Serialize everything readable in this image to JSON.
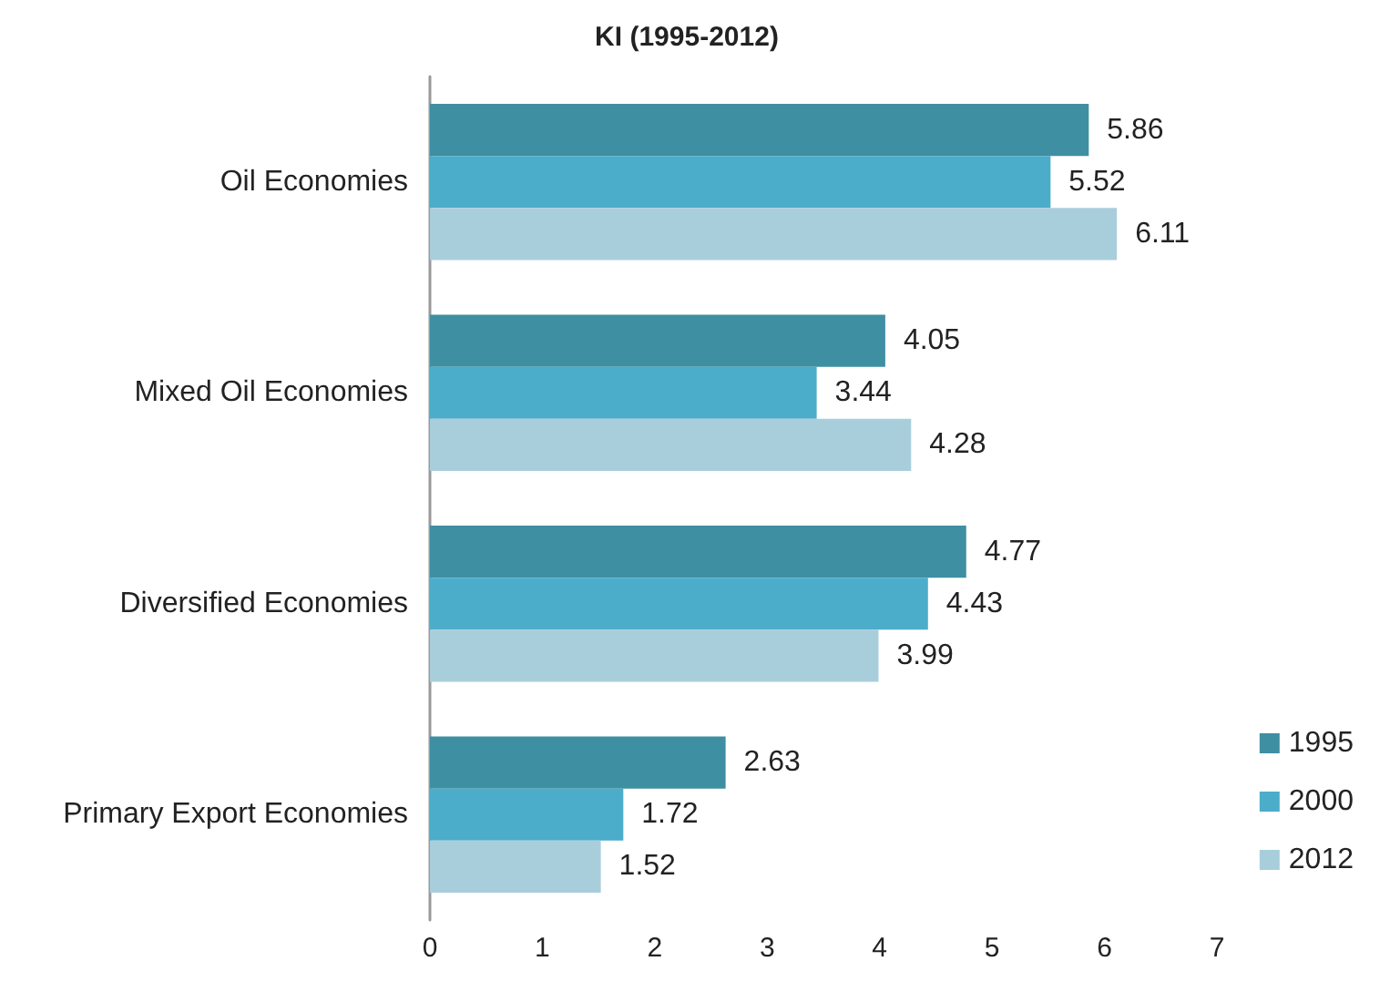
{
  "chart_data": {
    "type": "bar",
    "orientation": "horizontal",
    "title": "KI (1995-2012)",
    "categories": [
      "Oil Economies",
      "Mixed Oil Economies",
      "Diversified Economies",
      "Primary Export Economies"
    ],
    "series": [
      {
        "name": "1995",
        "color": "#3e8fa1",
        "values": [
          5.86,
          4.05,
          4.77,
          2.63
        ]
      },
      {
        "name": "2000",
        "color": "#4badc9",
        "values": [
          5.52,
          3.44,
          4.43,
          1.72
        ]
      },
      {
        "name": "2012",
        "color": "#a9cedb",
        "values": [
          6.11,
          4.28,
          3.99,
          1.52
        ]
      }
    ],
    "xlim": [
      0,
      7
    ],
    "xticks": [
      0,
      1,
      2,
      3,
      4,
      5,
      6,
      7
    ],
    "data_labels": true,
    "grid": false,
    "legend": "bottom right"
  }
}
